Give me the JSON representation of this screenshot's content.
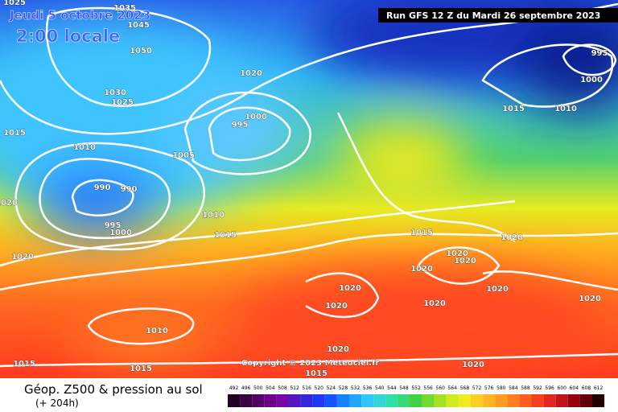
{
  "header": {
    "title": "Jeudi 5 octobre 2023",
    "subtitle": "2:00 locale",
    "run": "Run GFS 12 Z du Mardi 26 septembre 2023"
  },
  "copyright": "Copyright © 2023 Meteociel.fr",
  "isobar_labels": [
    1035,
    1045,
    1050,
    1030,
    1025,
    1020,
    1000,
    995,
    1010,
    1005,
    990,
    990,
    995,
    1000,
    1010,
    1015,
    1015,
    1020,
    1020,
    1015,
    1020,
    1020,
    1020,
    1020,
    1020,
    1020,
    1020,
    1020,
    1020,
    1010,
    1020,
    1020,
    1015,
    1015,
    1015,
    995,
    1000,
    1015,
    1010,
    1025
  ],
  "footer": {
    "title": "Géop. Z500 & pression au sol",
    "lead_time": "(+ 204h)",
    "scale": [
      492,
      496,
      500,
      504,
      508,
      512,
      516,
      520,
      524,
      528,
      532,
      536,
      540,
      544,
      548,
      552,
      556,
      560,
      564,
      568,
      572,
      576,
      580,
      584,
      588,
      592,
      596,
      600,
      604,
      608,
      612
    ]
  }
}
